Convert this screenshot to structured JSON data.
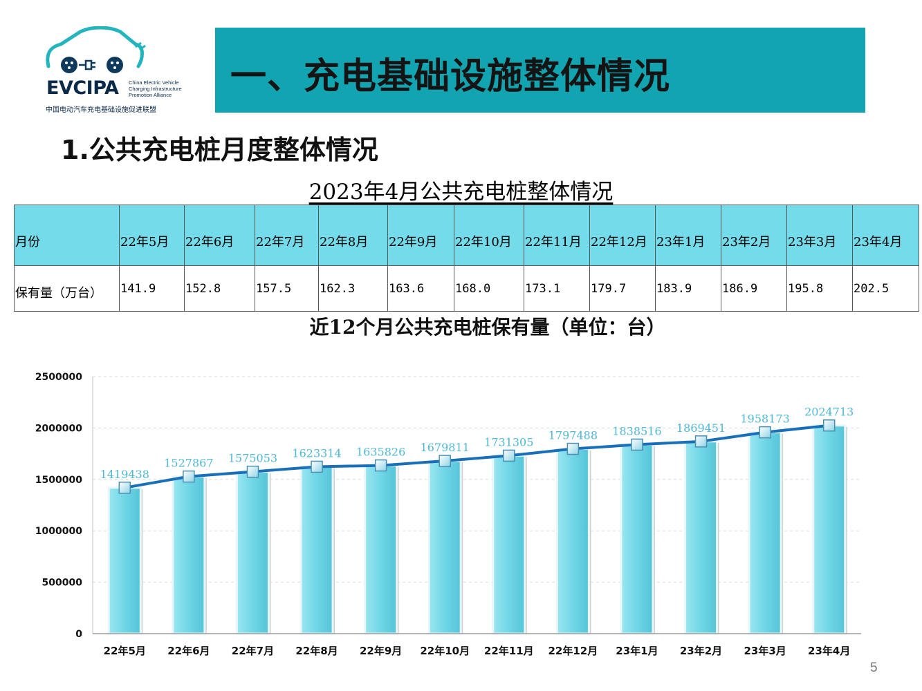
{
  "logo": {
    "word": "EVCIPA",
    "en_lines": [
      "China Electric Vehicle",
      "Charging Infrastructure",
      "Promotion Alliance"
    ],
    "cn": "中国电动汽车充电基础设施促进联盟"
  },
  "banner": {
    "title": "一、充电基础设施整体情况",
    "color": "#12a4b0"
  },
  "section": {
    "title": "1.公共充电桩月度整体情况"
  },
  "table": {
    "title": "2023年4月公共充电桩整体情况",
    "header_label": "月份",
    "row_label": "保有量（万台）",
    "months": [
      "22年5月",
      "22年6月",
      "22年7月",
      "22年8月",
      "22年9月",
      "22年10月",
      "22年11月",
      "22年12月",
      "23年1月",
      "23年2月",
      "23年3月",
      "23年4月"
    ],
    "values": [
      "141.9",
      "152.8",
      "157.5",
      "162.3",
      "163.6",
      "168.0",
      "173.1",
      "179.7",
      "183.9",
      "186.9",
      "195.8",
      "202.5"
    ],
    "header_color": "#73dbea"
  },
  "chart_data": {
    "type": "bar",
    "title": "近12个月公共充电桩保有量（单位：台）",
    "categories": [
      "22年5月",
      "22年6月",
      "22年7月",
      "22年8月",
      "22年9月",
      "22年10月",
      "22年11月",
      "22年12月",
      "23年1月",
      "23年2月",
      "23年3月",
      "23年4月"
    ],
    "values": [
      1419438,
      1527867,
      1575053,
      1623314,
      1635826,
      1679811,
      1731305,
      1797488,
      1838516,
      1869451,
      1958173,
      2024713
    ],
    "line_overlay": true,
    "data_labels": [
      "1419438",
      "1527867",
      "1575053",
      "1623314",
      "1635826",
      "1679811",
      "1731305",
      "1797488",
      "1838516",
      "1869451",
      "1958173",
      "2024713"
    ],
    "yticks": [
      "0",
      "500000",
      "1000000",
      "1500000",
      "2000000",
      "2500000"
    ],
    "ylim": [
      0,
      2500000
    ],
    "grid": true,
    "bar_color": "#6fd6e6",
    "line_color": "#1a6fba",
    "label_color": "#4fb8d4"
  },
  "page_number": "5"
}
